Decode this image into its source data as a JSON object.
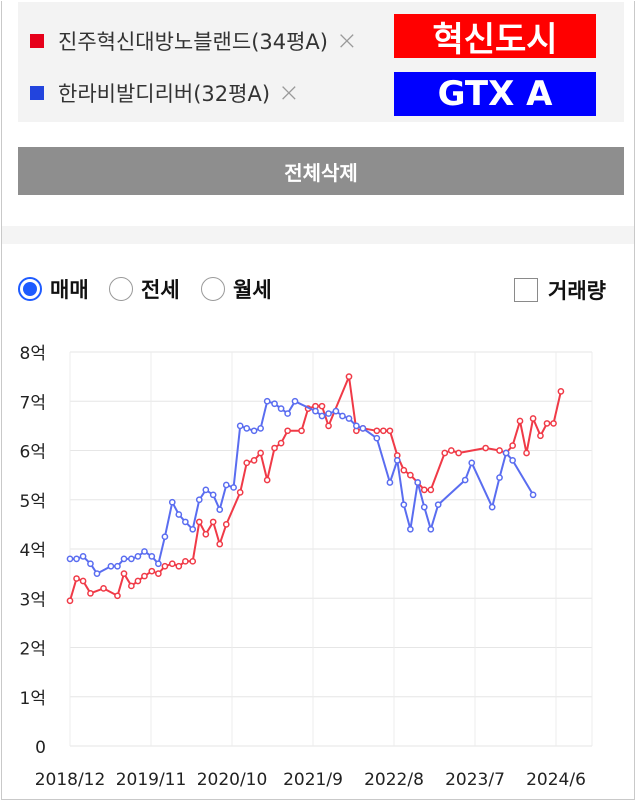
{
  "compare": {
    "items": [
      {
        "name": "진주혁신대방노블랜드(34평A)",
        "color": "#e6001a",
        "remove_icon": "close-icon"
      },
      {
        "name": "한라비발디리버(32평A)",
        "color": "#2244dd",
        "remove_icon": "close-icon"
      }
    ],
    "badges": [
      {
        "text": "혁신도시",
        "bg": "#ff0000"
      },
      {
        "text": "GTX A",
        "bg": "#0000ff"
      }
    ],
    "clear_all_label": "전체삭제"
  },
  "filters": {
    "trade_types": [
      {
        "label": "매매",
        "selected": true
      },
      {
        "label": "전세",
        "selected": false
      },
      {
        "label": "월세",
        "selected": false
      }
    ],
    "volume_label": "거래량",
    "volume_checked": false
  },
  "chart_data": {
    "type": "line",
    "y_unit": "억",
    "ylim": [
      0,
      8
    ],
    "y_ticks": [
      "0",
      "1억",
      "2억",
      "3억",
      "4억",
      "5억",
      "6억",
      "7억",
      "8억"
    ],
    "x_ticks": [
      "2018/12",
      "2019/11",
      "2020/10",
      "2021/9",
      "2022/8",
      "2023/7",
      "2024/6"
    ],
    "x_range": [
      2018.92,
      2025.3
    ],
    "grid": true,
    "series": [
      {
        "name": "진주혁신대방노블랜드(34평A)",
        "color": "#f03a47",
        "points": [
          [
            2018.92,
            2.95
          ],
          [
            2019.0,
            3.4
          ],
          [
            2019.08,
            3.35
          ],
          [
            2019.17,
            3.1
          ],
          [
            2019.33,
            3.2
          ],
          [
            2019.5,
            3.05
          ],
          [
            2019.58,
            3.5
          ],
          [
            2019.67,
            3.25
          ],
          [
            2019.75,
            3.35
          ],
          [
            2019.83,
            3.45
          ],
          [
            2019.92,
            3.55
          ],
          [
            2020.0,
            3.5
          ],
          [
            2020.08,
            3.65
          ],
          [
            2020.17,
            3.7
          ],
          [
            2020.25,
            3.65
          ],
          [
            2020.33,
            3.75
          ],
          [
            2020.42,
            3.75
          ],
          [
            2020.5,
            4.55
          ],
          [
            2020.58,
            4.3
          ],
          [
            2020.67,
            4.55
          ],
          [
            2020.75,
            4.1
          ],
          [
            2020.83,
            4.5
          ],
          [
            2021.0,
            5.15
          ],
          [
            2021.08,
            5.75
          ],
          [
            2021.17,
            5.8
          ],
          [
            2021.25,
            5.95
          ],
          [
            2021.33,
            5.4
          ],
          [
            2021.42,
            6.05
          ],
          [
            2021.5,
            6.15
          ],
          [
            2021.58,
            6.4
          ],
          [
            2021.75,
            6.4
          ],
          [
            2021.83,
            6.85
          ],
          [
            2021.92,
            6.9
          ],
          [
            2022.0,
            6.9
          ],
          [
            2022.08,
            6.5
          ],
          [
            2022.33,
            7.5
          ],
          [
            2022.42,
            6.4
          ],
          [
            2022.5,
            6.45
          ],
          [
            2022.67,
            6.4
          ],
          [
            2022.75,
            6.4
          ],
          [
            2022.83,
            6.4
          ],
          [
            2022.92,
            5.9
          ],
          [
            2023.0,
            5.6
          ],
          [
            2023.08,
            5.5
          ],
          [
            2023.17,
            5.35
          ],
          [
            2023.25,
            5.2
          ],
          [
            2023.33,
            5.2
          ],
          [
            2023.5,
            5.95
          ],
          [
            2023.58,
            6.0
          ],
          [
            2023.67,
            5.95
          ],
          [
            2024.0,
            6.05
          ],
          [
            2024.17,
            6.0
          ],
          [
            2024.25,
            5.95
          ],
          [
            2024.33,
            6.1
          ],
          [
            2024.42,
            6.6
          ],
          [
            2024.5,
            5.95
          ],
          [
            2024.58,
            6.65
          ],
          [
            2024.67,
            6.3
          ],
          [
            2024.75,
            6.55
          ],
          [
            2024.83,
            6.55
          ],
          [
            2024.92,
            7.2
          ]
        ]
      },
      {
        "name": "한라비발디리버(32평A)",
        "color": "#5a6df0",
        "points": [
          [
            2018.92,
            3.8
          ],
          [
            2019.0,
            3.8
          ],
          [
            2019.08,
            3.85
          ],
          [
            2019.17,
            3.7
          ],
          [
            2019.25,
            3.5
          ],
          [
            2019.42,
            3.65
          ],
          [
            2019.5,
            3.65
          ],
          [
            2019.58,
            3.8
          ],
          [
            2019.67,
            3.8
          ],
          [
            2019.75,
            3.85
          ],
          [
            2019.83,
            3.95
          ],
          [
            2019.92,
            3.85
          ],
          [
            2020.0,
            3.7
          ],
          [
            2020.08,
            4.25
          ],
          [
            2020.17,
            4.95
          ],
          [
            2020.25,
            4.7
          ],
          [
            2020.33,
            4.55
          ],
          [
            2020.42,
            4.4
          ],
          [
            2020.5,
            5.0
          ],
          [
            2020.58,
            5.2
          ],
          [
            2020.67,
            5.1
          ],
          [
            2020.75,
            4.8
          ],
          [
            2020.83,
            5.3
          ],
          [
            2020.92,
            5.25
          ],
          [
            2021.0,
            6.5
          ],
          [
            2021.08,
            6.45
          ],
          [
            2021.17,
            6.4
          ],
          [
            2021.25,
            6.45
          ],
          [
            2021.33,
            7.0
          ],
          [
            2021.42,
            6.95
          ],
          [
            2021.5,
            6.85
          ],
          [
            2021.58,
            6.75
          ],
          [
            2021.67,
            7.0
          ],
          [
            2021.92,
            6.8
          ],
          [
            2022.0,
            6.7
          ],
          [
            2022.08,
            6.75
          ],
          [
            2022.17,
            6.8
          ],
          [
            2022.25,
            6.7
          ],
          [
            2022.33,
            6.65
          ],
          [
            2022.42,
            6.5
          ],
          [
            2022.5,
            6.45
          ],
          [
            2022.67,
            6.25
          ],
          [
            2022.83,
            5.35
          ],
          [
            2022.92,
            5.8
          ],
          [
            2023.0,
            4.9
          ],
          [
            2023.08,
            4.4
          ],
          [
            2023.17,
            5.35
          ],
          [
            2023.25,
            4.85
          ],
          [
            2023.33,
            4.4
          ],
          [
            2023.42,
            4.9
          ],
          [
            2023.75,
            5.4
          ],
          [
            2023.83,
            5.75
          ],
          [
            2024.08,
            4.85
          ],
          [
            2024.17,
            5.45
          ],
          [
            2024.25,
            5.95
          ],
          [
            2024.33,
            5.8
          ],
          [
            2024.58,
            5.1
          ]
        ]
      }
    ]
  }
}
